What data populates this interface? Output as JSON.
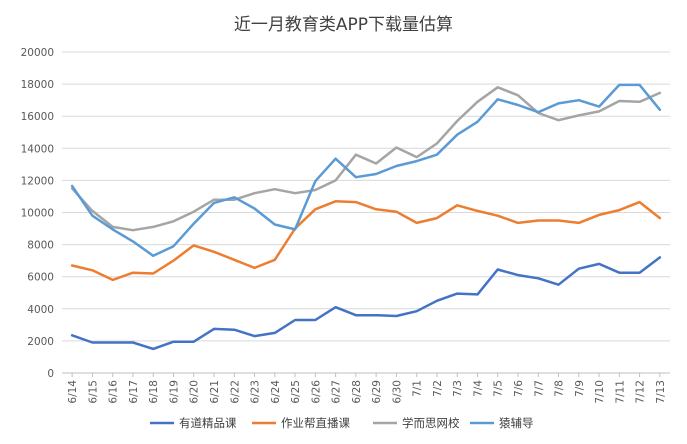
{
  "chart_data": {
    "type": "line",
    "title": "近一月教育类APP下载量估算",
    "xlabel": "",
    "ylabel": "",
    "ylim": [
      0,
      20000
    ],
    "yticks": [
      0,
      2000,
      4000,
      6000,
      8000,
      10000,
      12000,
      14000,
      16000,
      18000,
      20000
    ],
    "grid": true,
    "legend_position": "bottom",
    "categories": [
      "6/14",
      "6/15",
      "6/16",
      "6/17",
      "6/18",
      "6/19",
      "6/20",
      "6/21",
      "6/22",
      "6/23",
      "6/24",
      "6/25",
      "6/26",
      "6/27",
      "6/28",
      "6/29",
      "6/30",
      "7/1",
      "7/2",
      "7/3",
      "7/4",
      "7/5",
      "7/6",
      "7/7",
      "7/8",
      "7/9",
      "7/10",
      "7/11",
      "7/12",
      "7/13"
    ],
    "series": [
      {
        "name": "有道精品课",
        "color": "#4472C4",
        "values": [
          2350,
          1900,
          1900,
          1900,
          1500,
          1950,
          1950,
          2750,
          2700,
          2300,
          2500,
          3300,
          3300,
          4100,
          3600,
          3600,
          3550,
          3850,
          4500,
          4950,
          4900,
          6450,
          6100,
          5900,
          5500,
          6500,
          6800,
          6250,
          6250,
          7200
        ]
      },
      {
        "name": "作业帮直播课",
        "color": "#ED7D31",
        "values": [
          6700,
          6400,
          5800,
          6250,
          6200,
          7000,
          7950,
          7550,
          7050,
          6550,
          7050,
          9000,
          10200,
          10700,
          10650,
          10200,
          10050,
          9350,
          9650,
          10450,
          10100,
          9800,
          9350,
          9500,
          9500,
          9350,
          9850,
          10150,
          10650,
          9650
        ]
      },
      {
        "name": "学而思网校",
        "color": "#A5A5A5",
        "values": [
          11500,
          10100,
          9100,
          8900,
          9100,
          9450,
          10050,
          10800,
          10800,
          11200,
          11450,
          11200,
          11400,
          12000,
          13600,
          13050,
          14050,
          13450,
          14300,
          15700,
          16900,
          17800,
          17300,
          16200,
          15750,
          16050,
          16300,
          16950,
          16900,
          17450
        ]
      },
      {
        "name": "猿辅导",
        "color": "#5B9BD5",
        "values": [
          11650,
          9800,
          8950,
          8200,
          7300,
          7900,
          9300,
          10600,
          10950,
          10250,
          9250,
          8950,
          11950,
          13350,
          12200,
          12400,
          12900,
          13200,
          13600,
          14850,
          15650,
          17050,
          16700,
          16250,
          16800,
          17000,
          16600,
          17950,
          17950,
          16400
        ]
      }
    ]
  }
}
